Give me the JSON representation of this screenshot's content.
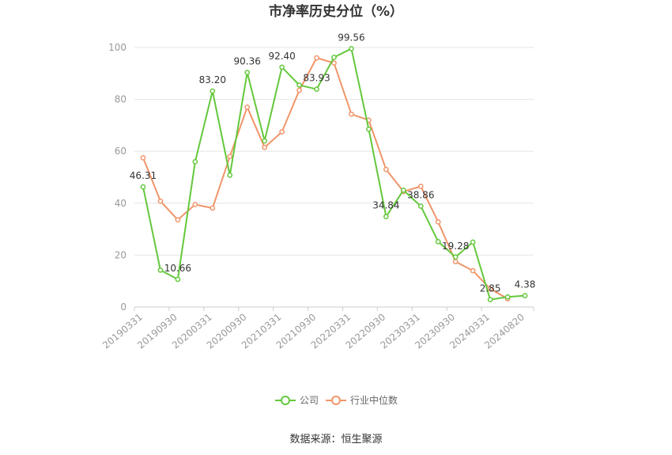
{
  "chart_data": {
    "type": "line",
    "title": "市净率历史分位（%）",
    "ylim": [
      0,
      100
    ],
    "yticks": [
      "0",
      "20",
      "40",
      "60",
      "80",
      "100"
    ],
    "x": [
      "20190331",
      "20190630",
      "20190930",
      "20191231",
      "20200331",
      "20200630",
      "20200930",
      "20201231",
      "20210331",
      "20210630",
      "20210930",
      "20211231",
      "20220331",
      "20220630",
      "20220930",
      "20221231",
      "20230331",
      "20230630",
      "20230930",
      "20231231",
      "20240331",
      "20240630",
      "20240820"
    ],
    "xtick_labels": [
      "20190331",
      "20190930",
      "20200331",
      "20200930",
      "20210331",
      "20210930",
      "20220331",
      "20220930",
      "20230331",
      "20230930",
      "20240331",
      "20240820"
    ],
    "series": [
      {
        "name": "公司",
        "color": "#64c83c",
        "values": [
          46.31,
          14.2,
          10.66,
          56.0,
          83.2,
          50.8,
          90.36,
          64.0,
          92.4,
          85.5,
          83.93,
          96.2,
          99.56,
          68.5,
          34.84,
          45.0,
          38.86,
          25.2,
          19.28,
          25.0,
          2.85,
          3.9,
          4.38
        ],
        "labels": [
          "46.31",
          "",
          "10.66",
          "",
          "83.20",
          "",
          "90.36",
          "",
          "92.40",
          "",
          "83.93",
          "",
          "99.56",
          "",
          "34.84",
          "",
          "38.86",
          "",
          "19.28",
          "",
          "2.85",
          "",
          "4.38"
        ]
      },
      {
        "name": "行业中位数",
        "color": "#f0956a",
        "values": [
          57.5,
          40.8,
          33.6,
          39.5,
          38.1,
          58.0,
          77.0,
          61.5,
          67.5,
          83.5,
          96.0,
          94.0,
          74.3,
          72.0,
          53.0,
          44.5,
          46.5,
          32.8,
          17.5,
          14.0,
          7.0,
          3.2,
          null
        ]
      }
    ],
    "legend_position": "bottom",
    "grid": true
  },
  "source_text": "数据来源：恒生聚源"
}
